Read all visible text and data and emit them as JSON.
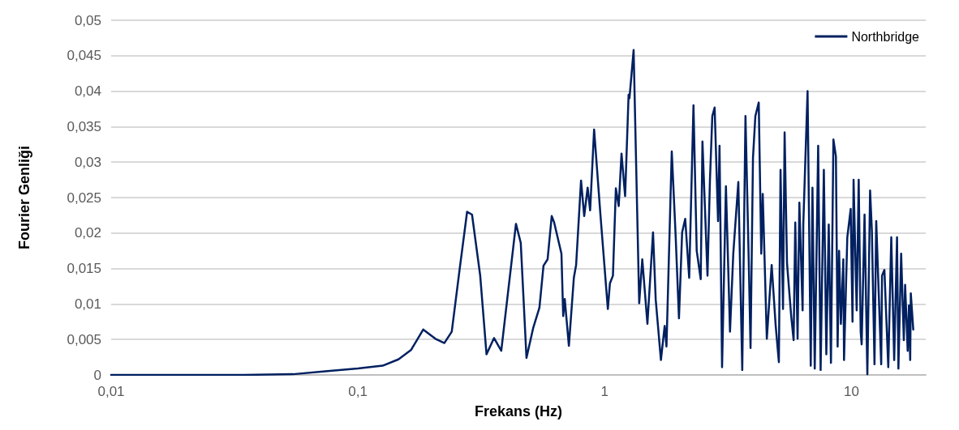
{
  "chart_data": {
    "type": "line",
    "xlabel": "Frekans (Hz)",
    "ylabel": "Fourier Genliği",
    "log": "x",
    "grid": "y",
    "legend": "top right",
    "marker": "none",
    "line_style": "solid",
    "xlim": [
      0.01,
      20
    ],
    "xticks": [
      {
        "value": 0.01,
        "label": "0,01"
      },
      {
        "value": 0.1,
        "label": "0,1"
      },
      1,
      10
    ],
    "ylim": [
      0,
      0.05
    ],
    "yticks": [
      0,
      {
        "value": 0.005,
        "label": "0,005"
      },
      {
        "value": 0.01,
        "label": "0,01"
      },
      {
        "value": 0.015,
        "label": "0,015"
      },
      {
        "value": 0.02,
        "label": "0,02"
      },
      {
        "value": 0.025,
        "label": "0,025"
      },
      {
        "value": 0.03,
        "label": "0,03"
      },
      {
        "value": 0.035,
        "label": "0,035"
      },
      {
        "value": 0.04,
        "label": "0,04"
      },
      {
        "value": 0.045,
        "label": "0,045"
      },
      {
        "value": 0.05,
        "label": "0,05"
      }
    ],
    "series": [
      {
        "name": "Northbridge",
        "color": "#002060",
        "x": [
          0.01,
          0.0345,
          0.0545,
          0.0738,
          0.1,
          0.126,
          0.146,
          0.164,
          0.184,
          0.206,
          0.224,
          0.24,
          0.259,
          0.277,
          0.29,
          0.313,
          0.332,
          0.356,
          0.381,
          0.417,
          0.437,
          0.457,
          0.482,
          0.513,
          0.544,
          0.565,
          0.587,
          0.61,
          0.624,
          0.668,
          0.679,
          0.689,
          0.716,
          0.75,
          0.766,
          0.802,
          0.826,
          0.853,
          0.873,
          0.906,
          0.962,
          1.03,
          1.05,
          1.08,
          1.11,
          1.14,
          1.17,
          1.21,
          1.25,
          1.26,
          1.31,
          1.38,
          1.42,
          1.49,
          1.57,
          1.61,
          1.69,
          1.75,
          1.78,
          1.87,
          1.94,
          2.0,
          2.06,
          2.12,
          2.2,
          2.29,
          2.36,
          2.45,
          2.49,
          2.61,
          2.67,
          2.73,
          2.79,
          2.88,
          2.92,
          2.99,
          3.1,
          3.22,
          3.32,
          3.48,
          3.61,
          3.72,
          3.84,
          3.9,
          3.99,
          4.08,
          4.21,
          4.31,
          4.37,
          4.54,
          4.75,
          4.93,
          5.08,
          5.16,
          5.28,
          5.36,
          5.48,
          5.7,
          5.83,
          5.92,
          6.05,
          6.15,
          6.34,
          6.38,
          6.64,
          6.84,
          6.95,
          7.1,
          7.33,
          7.5,
          7.73,
          7.91,
          8.09,
          8.26,
          8.45,
          8.65,
          8.79,
          8.91,
          9.06,
          9.27,
          9.33,
          9.62,
          9.93,
          10.1,
          10.2,
          10.5,
          10.7,
          10.9,
          11.0,
          11.3,
          11.6,
          11.9,
          12.1,
          12.4,
          12.6,
          13.2,
          13.3,
          13.6,
          14.1,
          14.5,
          14.9,
          15.3,
          15.5,
          15.9,
          16.3,
          16.5,
          16.9,
          17.1,
          17.3,
          17.4,
          17.8
        ],
        "values": [
          0,
          0,
          0.0001,
          0.0005,
          0.0009,
          0.0013,
          0.0022,
          0.0035,
          0.0064,
          0.0051,
          0.0045,
          0.0061,
          0.0152,
          0.023,
          0.0226,
          0.014,
          0.0029,
          0.0052,
          0.0034,
          0.0152,
          0.0213,
          0.0186,
          0.0024,
          0.0066,
          0.0095,
          0.0154,
          0.0163,
          0.0224,
          0.0215,
          0.0171,
          0.0083,
          0.0107,
          0.0041,
          0.0137,
          0.0155,
          0.0274,
          0.0224,
          0.0264,
          0.0232,
          0.0346,
          0.0224,
          0.0093,
          0.0129,
          0.014,
          0.0263,
          0.0238,
          0.0312,
          0.0252,
          0.0395,
          0.039,
          0.0458,
          0.0101,
          0.0163,
          0.0072,
          0.0201,
          0.0106,
          0.0021,
          0.0069,
          0.004,
          0.0315,
          0.0194,
          0.008,
          0.0201,
          0.022,
          0.0137,
          0.038,
          0.0175,
          0.0135,
          0.0329,
          0.014,
          0.0274,
          0.0365,
          0.0377,
          0.0217,
          0.0323,
          0.0011,
          0.0266,
          0.0061,
          0.0171,
          0.0272,
          0.0007,
          0.0365,
          0.0152,
          0.0038,
          0.0306,
          0.0365,
          0.0384,
          0.0171,
          0.0255,
          0.0051,
          0.0155,
          0.007,
          0.0018,
          0.0289,
          0.0093,
          0.0342,
          0.0158,
          0.0083,
          0.0049,
          0.0215,
          0.0051,
          0.0243,
          0.0091,
          0.0212,
          0.04,
          0.0013,
          0.0264,
          0.0009,
          0.0323,
          0.0007,
          0.0289,
          0.0029,
          0.0212,
          0.0017,
          0.0332,
          0.0308,
          0.004,
          0.0175,
          0.0072,
          0.0163,
          0.0021,
          0.0194,
          0.0234,
          0.0075,
          0.0275,
          0.0091,
          0.0275,
          0.0061,
          0.0043,
          0.0226,
          0.0001,
          0.026,
          0.0203,
          0.0015,
          0.0217,
          0.0015,
          0.014,
          0.0148,
          0.0011,
          0.0194,
          0.0021,
          0.0194,
          0.0009,
          0.0171,
          0.0049,
          0.0127,
          0.0034,
          0.0098,
          0.0021,
          0.0115,
          0.0064
        ]
      }
    ]
  }
}
